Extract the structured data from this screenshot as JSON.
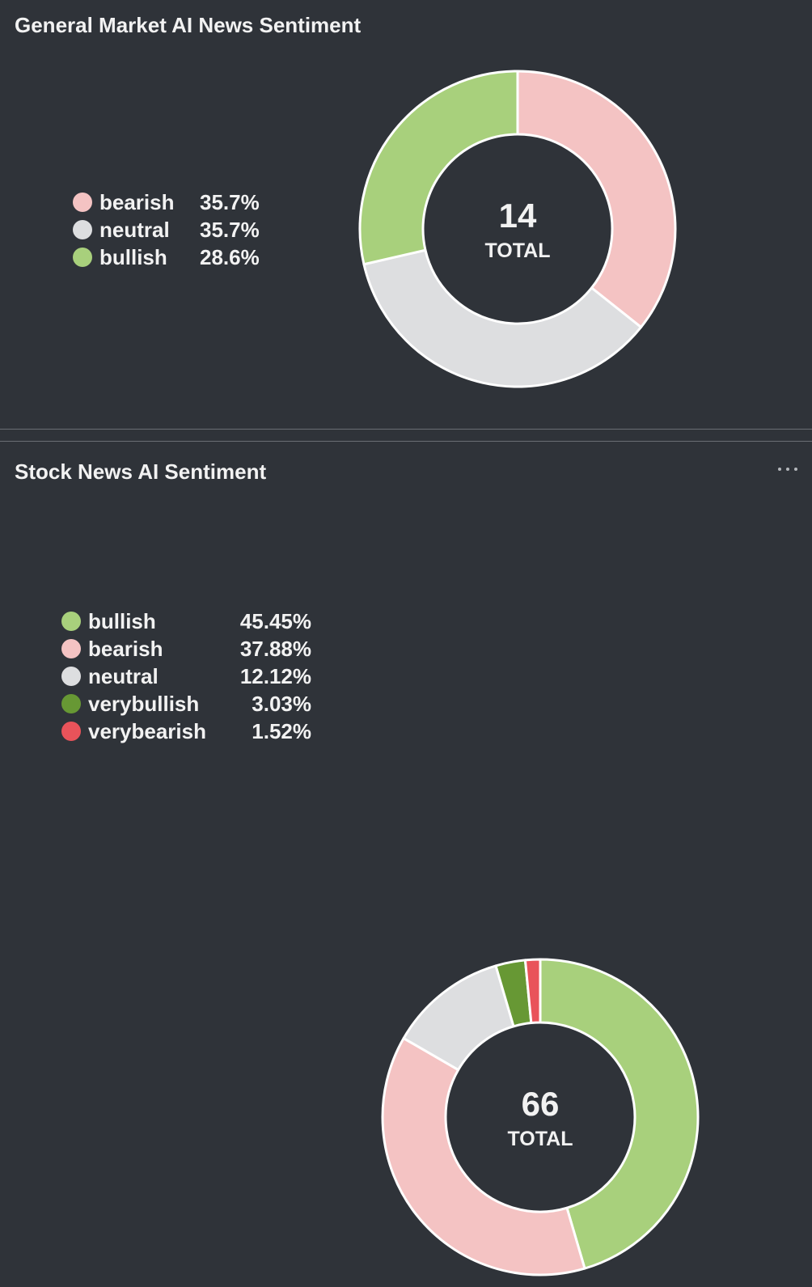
{
  "colors": {
    "background": "#2f3339",
    "bearish": "#f4c3c3",
    "neutral": "#dddee0",
    "bullish": "#a8d07c",
    "verybullish": "#679834",
    "verybearish": "#e9535a",
    "slice_border": "#ffffff"
  },
  "panels": [
    {
      "title": "General Market AI News Sentiment",
      "menu_icon": null
    },
    {
      "title": "Stock News AI Sentiment",
      "menu_icon": "more-horizontal-icon"
    }
  ],
  "chart_data": [
    {
      "type": "pie",
      "donut": true,
      "title": "General Market AI News Sentiment",
      "total": 14,
      "center_label": "TOTAL",
      "legend_position": "left",
      "start_angle_deg": 0,
      "slices": [
        {
          "label": "bearish",
          "value": 35.7,
          "display": "35.7%",
          "color": "#f4c3c3"
        },
        {
          "label": "neutral",
          "value": 35.7,
          "display": "35.7%",
          "color": "#dddee0"
        },
        {
          "label": "bullish",
          "value": 28.6,
          "display": "28.6%",
          "color": "#a8d07c"
        }
      ]
    },
    {
      "type": "pie",
      "donut": true,
      "title": "Stock News AI Sentiment",
      "total": 66,
      "center_label": "TOTAL",
      "legend_position": "left",
      "start_angle_deg": 0,
      "slices": [
        {
          "label": "bullish",
          "value": 45.45,
          "display": "45.45%",
          "color": "#a8d07c"
        },
        {
          "label": "bearish",
          "value": 37.88,
          "display": "37.88%",
          "color": "#f4c3c3"
        },
        {
          "label": "neutral",
          "value": 12.12,
          "display": "12.12%",
          "color": "#dddee0"
        },
        {
          "label": "verybullish",
          "value": 3.03,
          "display": "3.03%",
          "color": "#679834"
        },
        {
          "label": "verybearish",
          "value": 1.52,
          "display": "1.52%",
          "color": "#e9535a"
        }
      ]
    }
  ]
}
